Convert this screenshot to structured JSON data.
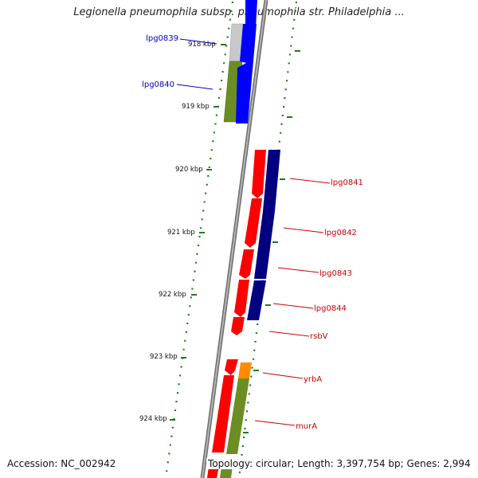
{
  "title": "Legionella pneumophila subsp. pneumophila str. Philadelphia ...",
  "footer": {
    "accession": "Accession: NC_002942",
    "topology": "Topology: circular; Length: 3,397,754 bp; Genes: 2,994"
  },
  "colors": {
    "background": "#ffffff",
    "backbone": "#8a8a8a",
    "scale_ticks": "#1f7a1f",
    "gene_red": "#ff0000",
    "gene_blue": "#0000ff",
    "gene_navy": "#000080",
    "gene_olive": "#6b8e23",
    "gene_orange": "#ff8c00",
    "gene_gray": "#c8c8c8",
    "label_blue": "#0000cc",
    "label_red": "#cc0000"
  },
  "kbp_labels": [
    "918 kbp",
    "919 kbp",
    "920 kbp",
    "921 kbp",
    "922 kbp",
    "923 kbp",
    "924 kbp"
  ],
  "gene_labels": [
    {
      "name": "lpg0839",
      "color": "blue"
    },
    {
      "name": "lpg0840",
      "color": "blue"
    },
    {
      "name": "lpg0841",
      "color": "red"
    },
    {
      "name": "lpg0842",
      "color": "red"
    },
    {
      "name": "lpg0843",
      "color": "red"
    },
    {
      "name": "lpg0844",
      "color": "red"
    },
    {
      "name": "rsbV",
      "color": "red"
    },
    {
      "name": "yrbA",
      "color": "red"
    },
    {
      "name": "murA",
      "color": "red"
    }
  ]
}
